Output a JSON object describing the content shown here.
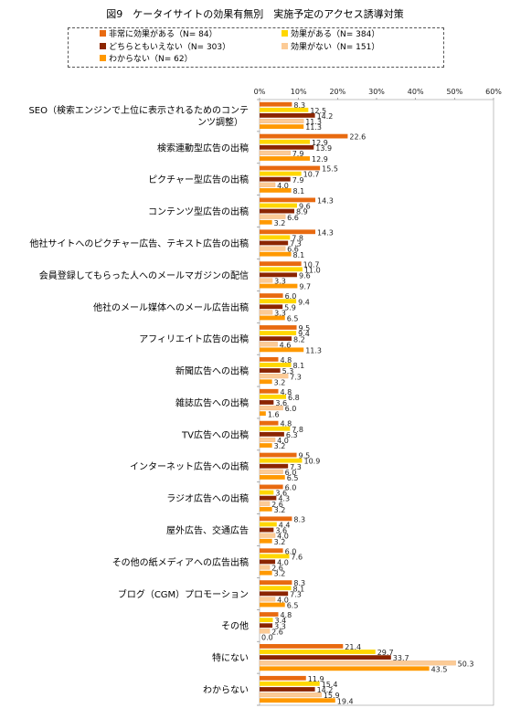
{
  "page_title": "図9　ケータイサイトの効果有無別　実施予定のアクセス誘導対策",
  "colors": {
    "s1": "#E86A10",
    "s2": "#FFD700",
    "s3": "#8B2500",
    "s4": "#FCCB96",
    "s5": "#FF9900"
  },
  "chart_data": {
    "type": "bar",
    "orientation": "horizontal",
    "title": "図9　ケータイサイトの効果有無別　実施予定のアクセス誘導対策",
    "xlim": [
      0,
      60
    ],
    "ticks": [
      "0%",
      "10%",
      "20%",
      "30%",
      "40%",
      "50%",
      "60%"
    ],
    "tick_values": [
      0,
      10,
      20,
      30,
      40,
      50,
      60
    ],
    "legend_position": "top",
    "categories": [
      [
        "SEO（検索エンジンで上位に表示されるためのコンテ",
        "ンツ調整）"
      ],
      [
        "検索連動型広告の出稿"
      ],
      [
        "ピクチャー型広告の出稿"
      ],
      [
        "コンテンツ型広告の出稿"
      ],
      [
        "他社サイトへのピクチャー広告、テキスト広告の出稿"
      ],
      [
        "会員登録してもらった人へのメールマガジンの配信"
      ],
      [
        "他社のメール媒体へのメール広告出稿"
      ],
      [
        "アフィリエイト広告の出稿"
      ],
      [
        "新聞広告への出稿"
      ],
      [
        "雑誌広告への出稿"
      ],
      [
        "TV広告への出稿"
      ],
      [
        "インターネット広告への出稿"
      ],
      [
        "ラジオ広告への出稿"
      ],
      [
        "屋外広告、交通広告"
      ],
      [
        "その他の紙メディアへの広告出稿"
      ],
      [
        "ブログ（CGM）プロモーション"
      ],
      [
        "その他"
      ],
      [
        "特にない"
      ],
      [
        "わからない"
      ]
    ],
    "series": [
      {
        "name": "非常に効果がある（N= 84）",
        "color_key": "s1",
        "values": [
          8.3,
          22.6,
          15.5,
          14.3,
          14.3,
          10.7,
          6.0,
          9.5,
          4.8,
          4.8,
          4.8,
          9.5,
          6.0,
          8.3,
          6.0,
          8.3,
          4.8,
          21.4,
          11.9
        ]
      },
      {
        "name": "効果がある（N= 384）",
        "color_key": "s2",
        "values": [
          12.5,
          12.9,
          10.7,
          9.6,
          7.8,
          11.0,
          9.4,
          9.4,
          8.1,
          6.8,
          7.8,
          10.9,
          3.6,
          4.4,
          7.6,
          8.1,
          3.4,
          29.7,
          15.4
        ]
      },
      {
        "name": "どちらともいえない（N= 303）",
        "color_key": "s3",
        "values": [
          14.2,
          13.9,
          7.9,
          8.9,
          7.3,
          9.6,
          5.9,
          8.2,
          5.3,
          3.6,
          6.3,
          7.3,
          4.3,
          3.6,
          4.0,
          7.3,
          3.3,
          33.7,
          14.2
        ]
      },
      {
        "name": "効果がない（N= 151）",
        "color_key": "s4",
        "values": [
          11.3,
          7.9,
          4.0,
          6.6,
          6.6,
          3.3,
          3.3,
          4.6,
          7.3,
          6.0,
          4.0,
          6.0,
          2.6,
          4.0,
          2.6,
          4.0,
          2.6,
          50.3,
          15.9
        ]
      },
      {
        "name": "わからない（N= 62）",
        "color_key": "s5",
        "values": [
          11.3,
          12.9,
          8.1,
          3.2,
          8.1,
          9.7,
          6.5,
          11.3,
          3.2,
          1.6,
          3.2,
          6.5,
          3.2,
          3.2,
          3.2,
          6.5,
          0.0,
          43.5,
          19.4
        ]
      }
    ]
  }
}
